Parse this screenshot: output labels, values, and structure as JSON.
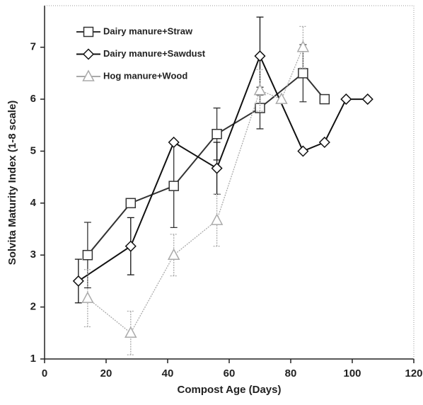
{
  "chart_data": {
    "type": "line",
    "x_label": "Compost Age (Days)",
    "y_label": "Solvita Maturity Index (1-8 scale)",
    "xlim": [
      0,
      120
    ],
    "xticks": [
      0,
      20,
      40,
      60,
      80,
      100,
      120
    ],
    "ylim": [
      1,
      7.8
    ],
    "yticks": [
      1,
      2,
      3,
      4,
      5,
      6,
      7
    ],
    "legend": "upper left",
    "series": [
      {
        "name": "Dairy manure+Straw",
        "color": "#333333",
        "marker": "square",
        "x": [
          14,
          28,
          42,
          56,
          70,
          84,
          91
        ],
        "values": [
          3.0,
          4.0,
          4.33,
          5.33,
          5.83,
          6.5,
          6.0
        ],
        "errors": [
          0.63,
          null,
          0.8,
          0.5,
          0.4,
          0.55,
          null
        ]
      },
      {
        "name": "Dairy manure+Sawdust",
        "color": "#111111",
        "marker": "diamond",
        "x": [
          11,
          28,
          42,
          56,
          70,
          84,
          91,
          98,
          105
        ],
        "values": [
          2.5,
          3.17,
          5.17,
          4.67,
          6.83,
          5.0,
          5.17,
          6.0,
          6.0
        ],
        "errors": [
          0.42,
          0.55,
          null,
          0.5,
          0.75,
          null,
          null,
          null,
          null
        ]
      },
      {
        "name": "Hog manure+Wood",
        "color": "#aaaaaa",
        "marker": "triangle",
        "x": [
          14,
          28,
          42,
          56,
          70,
          77,
          84
        ],
        "values": [
          2.17,
          1.5,
          3.0,
          3.67,
          6.17,
          6.0,
          7.0
        ],
        "errors": [
          0.55,
          0.42,
          0.4,
          0.5,
          0.4,
          null,
          0.4
        ]
      }
    ]
  }
}
